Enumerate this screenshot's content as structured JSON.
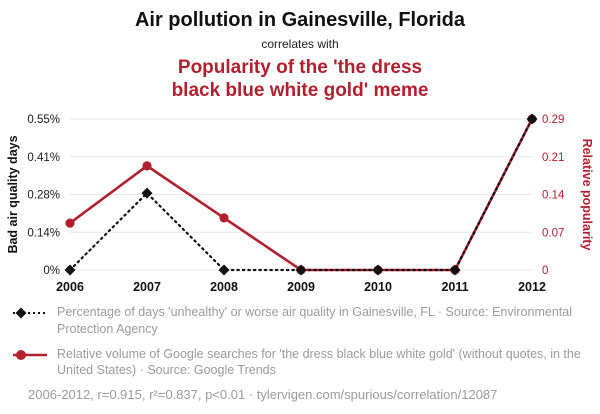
{
  "header": {
    "title": "Air pollution in Gainesville, Florida",
    "subtitle": "correlates with",
    "red_title_line1": "Popularity of the 'the dress",
    "red_title_line2": "black blue white gold' meme"
  },
  "colors": {
    "black_series": "#111111",
    "red_series": "#b2202f",
    "grid": "#e7e7e7",
    "axis_text": "#1a1a1a",
    "legend_text": "#9b9b9b",
    "footer_text": "#9b9b9b"
  },
  "chart_data": {
    "type": "line",
    "title": "Air pollution in Gainesville, Florida correlates with Popularity of the 'the dress black blue white gold' meme",
    "categories": [
      "2006",
      "2007",
      "2008",
      "2009",
      "2010",
      "2011",
      "2012"
    ],
    "series": [
      {
        "name": "Percentage of days 'unhealthy' or worse air quality in Gainesville, FL",
        "axis": "left",
        "style": "dotted-diamond",
        "color": "#111111",
        "values": [
          0,
          0.28,
          0,
          0,
          0,
          0,
          0.55
        ]
      },
      {
        "name": "Relative volume of Google searches for 'the dress black blue white gold'",
        "axis": "right",
        "style": "solid-circle",
        "color": "#b2202f",
        "values": [
          0.09,
          0.2,
          0.1,
          0,
          0,
          0,
          0.29
        ]
      }
    ],
    "left_axis": {
      "label": "Bad air quality days",
      "tick_labels": [
        "0%",
        "0.14%",
        "0.28%",
        "0.41%",
        "0.55%"
      ],
      "min": 0,
      "max": 0.55
    },
    "right_axis": {
      "label": "Relative popularity",
      "tick_labels": [
        "0",
        "0.07",
        "0.14",
        "0.21",
        "0.29"
      ],
      "min": 0,
      "max": 0.29
    },
    "grid": true,
    "legend_position": "bottom"
  },
  "legend": [
    {
      "marker": "black-diamond-dotted-line",
      "label": "Percentage of days 'unhealthy' or worse air quality in Gainesville, FL · Source: Environmental Protection Agency"
    },
    {
      "marker": "red-circle-solid-line",
      "label": "Relative volume of Google searches for 'the dress black blue white gold' (without quotes, in the United States) · Source: Google Trends"
    }
  ],
  "footer": {
    "text": "2006-2012, r=0.915, r²=0.837, p<0.01 · tylervigen.com/spurious/correlation/12087"
  }
}
